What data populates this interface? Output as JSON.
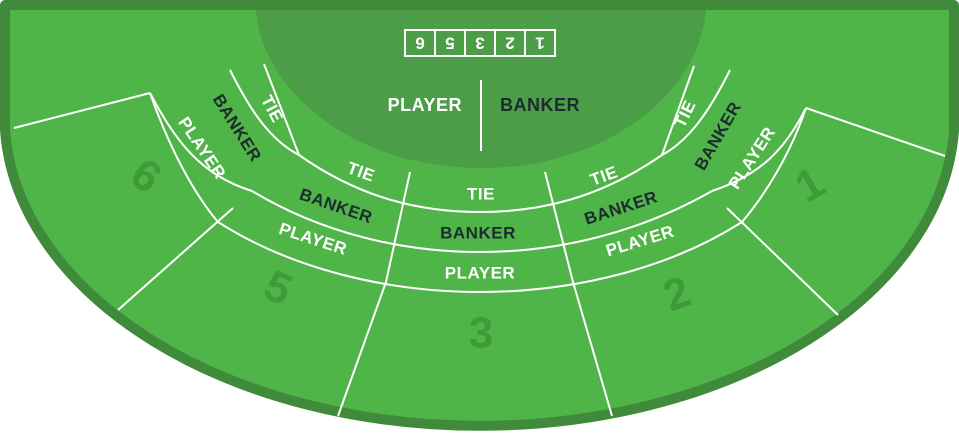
{
  "table": {
    "felt_color": "#4fb548",
    "border_color": "#3f8a3b",
    "dealer_area_color": "#4c9d48",
    "seat_number_color": "#3f9a3a",
    "dark_text_color": "#1d2b2f",
    "light_text_color": "#ffffff"
  },
  "dealer": {
    "player_label": "PLAYER",
    "banker_label": "BANKER",
    "discard_digits": [
      "1",
      "2",
      "3",
      "5",
      "6"
    ]
  },
  "bet_labels": {
    "tie": "TIE",
    "banker": "BANKER",
    "player": "PLAYER"
  },
  "seats": [
    {
      "number": "1"
    },
    {
      "number": "2"
    },
    {
      "number": "3"
    },
    {
      "number": "5"
    },
    {
      "number": "6"
    }
  ]
}
